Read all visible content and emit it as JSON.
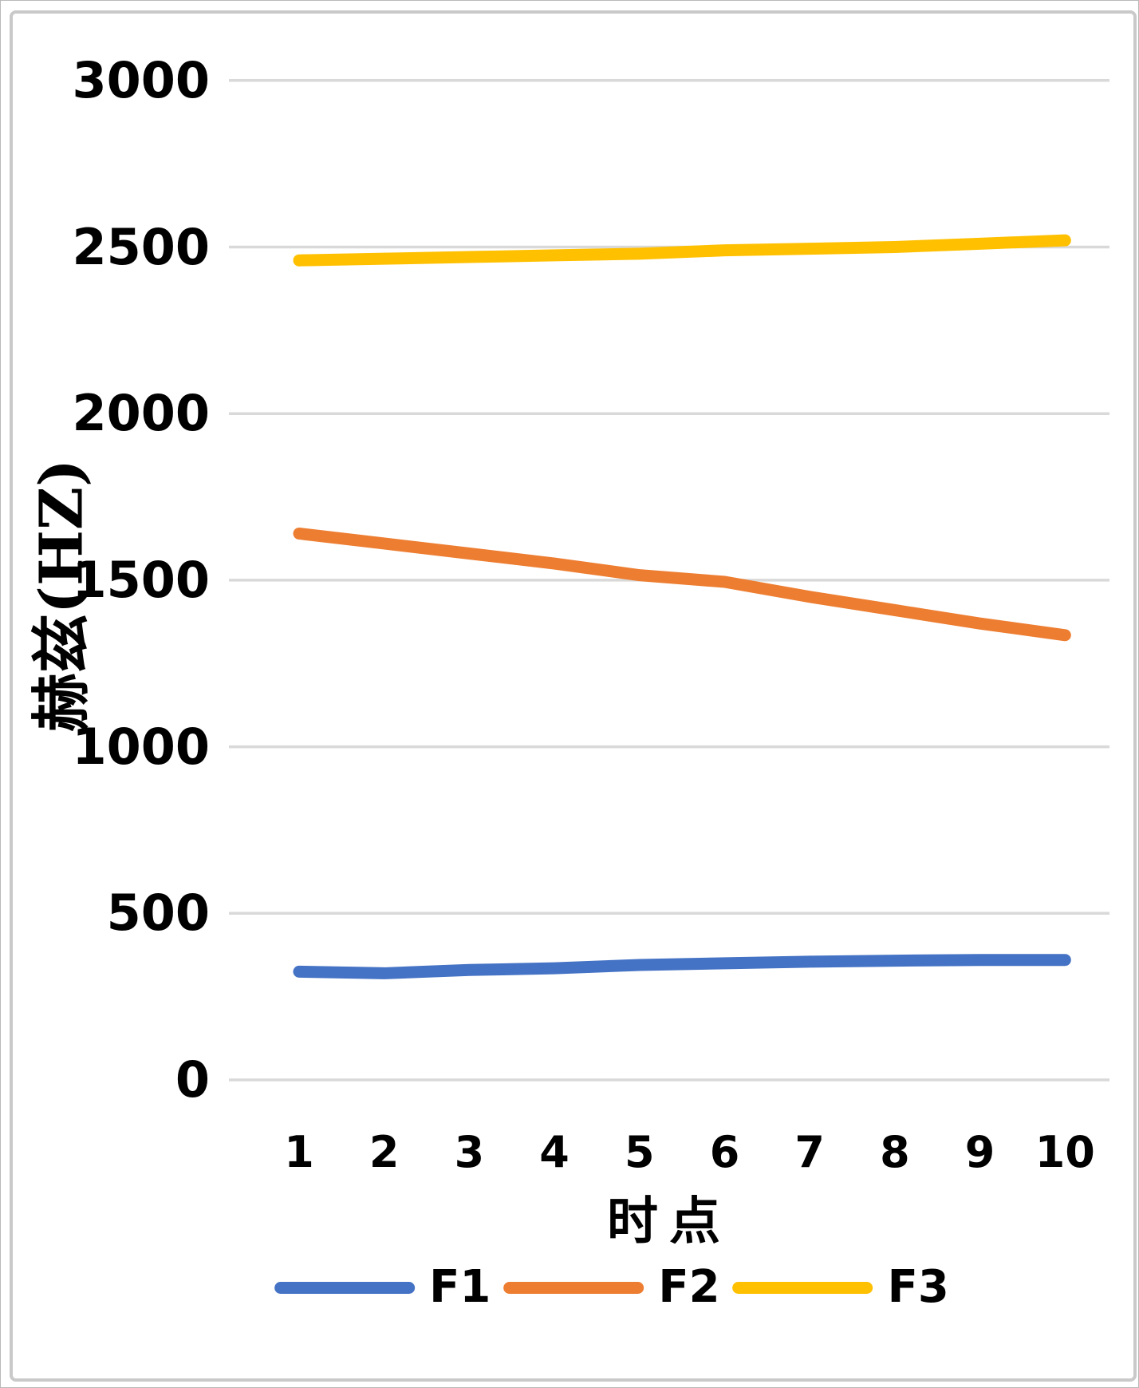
{
  "figure": {
    "background": "#ffffff",
    "frame_border_color": "#c9c9c9"
  },
  "chart_data": {
    "type": "line",
    "xlabel": "时点",
    "ylabel": "赫兹(HZ)",
    "x": [
      1,
      2,
      3,
      4,
      5,
      6,
      7,
      8,
      9,
      10
    ],
    "yticks": [
      0,
      500,
      1000,
      1500,
      2000,
      2500,
      3000
    ],
    "ylim": [
      0,
      3000
    ],
    "grid": true,
    "gridline_color": "#d9d9d9",
    "legend_position": "bottom",
    "series": [
      {
        "name": "F1",
        "color": "#4472C4",
        "values": [
          325,
          320,
          330,
          335,
          345,
          350,
          355,
          358,
          360,
          360
        ]
      },
      {
        "name": "F2",
        "color": "#ED7D31",
        "values": [
          1640,
          1610,
          1580,
          1550,
          1515,
          1495,
          1450,
          1410,
          1370,
          1335
        ]
      },
      {
        "name": "F3",
        "color": "#FFC000",
        "values": [
          2460,
          2465,
          2470,
          2475,
          2480,
          2490,
          2495,
          2500,
          2510,
          2520
        ]
      }
    ]
  }
}
